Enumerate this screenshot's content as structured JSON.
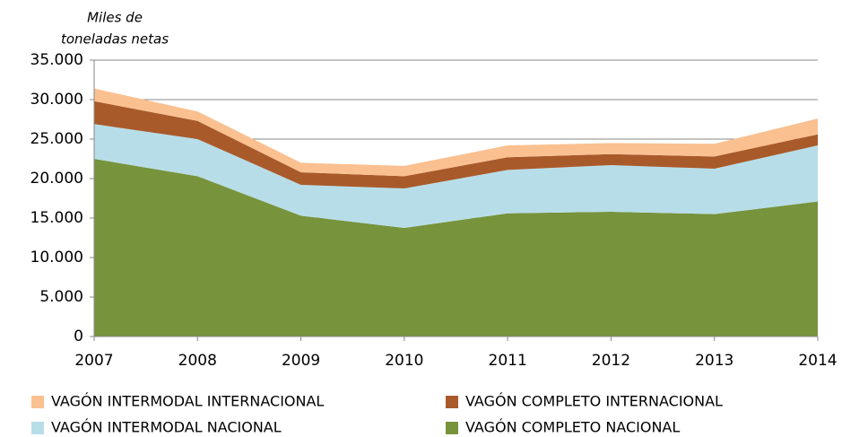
{
  "chart_data": {
    "type": "stacked_area",
    "y_label": [
      "Miles de",
      "toneladas netas"
    ],
    "categories": [
      "2007",
      "2008",
      "2009",
      "2010",
      "2011",
      "2012",
      "2013",
      "2014"
    ],
    "series": [
      {
        "name": "VAGÓN COMPLETO NACIONAL",
        "color": "#77933c",
        "values": [
          22500,
          20300,
          15300,
          13750,
          15600,
          15800,
          15500,
          17100
        ]
      },
      {
        "name": "VAGÓN INTERMODAL NACIONAL",
        "color": "#b7dee8",
        "values": [
          4400,
          4700,
          3900,
          5000,
          5500,
          5900,
          5750,
          7100
        ]
      },
      {
        "name": "VAGÓN COMPLETO INTERNACIONAL",
        "color": "#a95a2b",
        "values": [
          2900,
          2300,
          1600,
          1550,
          1600,
          1400,
          1550,
          1400
        ]
      },
      {
        "name": "VAGÓN INTERMODAL INTERNACIONAL",
        "color": "#fac090",
        "values": [
          1600,
          1200,
          1200,
          1300,
          1500,
          1400,
          1600,
          2000
        ]
      }
    ],
    "ylim": [
      0,
      35000
    ],
    "yticks": [
      0,
      {
        "value": 5000,
        "label": "5.000"
      },
      {
        "value": 10000,
        "label": "10.000"
      },
      {
        "value": 15000,
        "label": "15.000"
      },
      {
        "value": 20000,
        "label": "20.000"
      },
      {
        "value": 25000,
        "label": "25.000"
      },
      {
        "value": 30000,
        "label": "30.000"
      },
      {
        "value": 35000,
        "label": "35.000"
      }
    ],
    "grid": true
  }
}
